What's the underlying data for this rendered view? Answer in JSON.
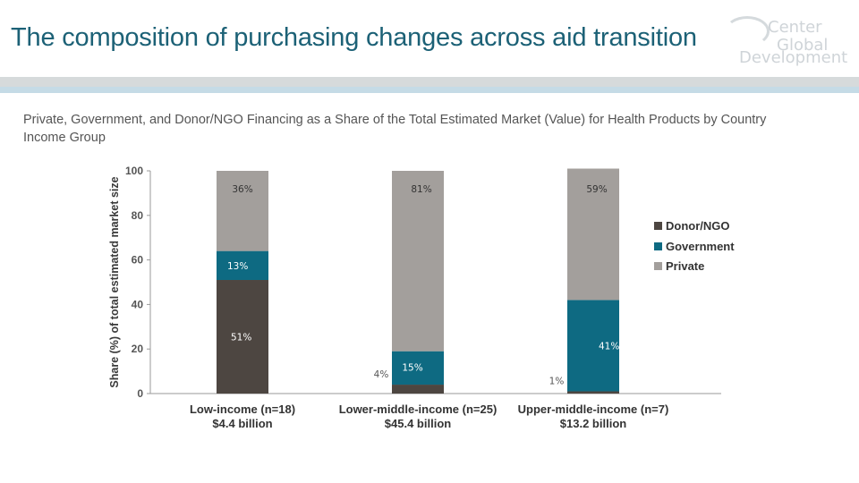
{
  "slide": {
    "title": "The composition of purchasing changes across aid transition",
    "logo": {
      "line1": "Center",
      "line2": "Global",
      "line3": "Development"
    }
  },
  "chart_data": {
    "type": "bar",
    "stacked": true,
    "title": "Private, Government, and Donor/NGO Financing as a Share of the Total Estimated Market (Value) for Health Products by Country Income Group",
    "ylabel": "Share (%) of total estimated market size",
    "ylim": [
      0,
      100
    ],
    "yticks": [
      0,
      20,
      40,
      60,
      80,
      100
    ],
    "categories": [
      [
        "Low-income (n=18)",
        "$4.4 billion"
      ],
      [
        "Lower-middle-income (n=25)",
        "$45.4 billion"
      ],
      [
        "Upper-middle-income (n=7)",
        "$13.2 billion"
      ]
    ],
    "series": [
      {
        "name": "Donor/NGO",
        "color": "#4d4641",
        "values": [
          51,
          4,
          1
        ],
        "labels": [
          "51%",
          "4%",
          "1%"
        ]
      },
      {
        "name": "Government",
        "color": "#0e6a82",
        "values": [
          13,
          15,
          41
        ],
        "labels": [
          "13%",
          "15%",
          "41%"
        ]
      },
      {
        "name": "Private",
        "color": "#a39f9c",
        "values": [
          36,
          81,
          59
        ],
        "labels": [
          "36%",
          "81%",
          "59%"
        ]
      }
    ],
    "legend_position": "right",
    "grid": false
  }
}
